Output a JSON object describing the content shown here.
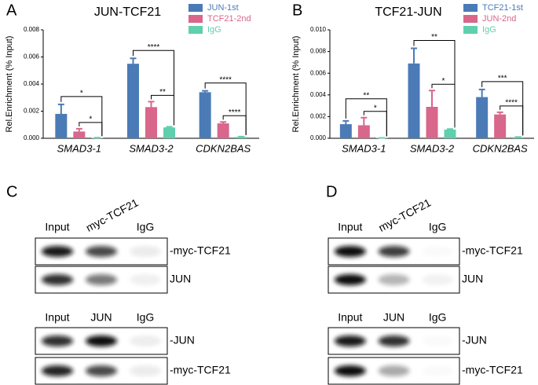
{
  "chart_data": [
    {
      "type": "bar",
      "panel": "A",
      "title": "JUN-TCF21",
      "y_label": "Rel.Enrichment (% Input)",
      "categories": [
        "SMAD3-1",
        "SMAD3-2",
        "CDKN2BAS"
      ],
      "series": [
        {
          "name": "JUN-1st",
          "color": "#4b7bb6",
          "values": [
            0.0018,
            0.0055,
            0.0034
          ],
          "errors": [
            0.0007,
            0.0004,
            0.0001
          ]
        },
        {
          "name": "TCF21-2nd",
          "color": "#d9668b",
          "values": [
            0.0005,
            0.0023,
            0.0011
          ],
          "errors": [
            0.0002,
            0.0004,
            0.0001
          ]
        },
        {
          "name": "IgG",
          "color": "#5fcfae",
          "values": [
            3e-05,
            0.0008,
            0.0001
          ],
          "errors": [
            1e-05,
            5e-05,
            2e-05
          ]
        }
      ],
      "significance": [
        [
          "*",
          "*"
        ],
        [
          "****",
          "**"
        ],
        [
          "****",
          "****"
        ]
      ],
      "ylim": [
        0,
        0.008
      ],
      "yticks": [
        {
          "value": 0,
          "label": "0.000"
        },
        {
          "value": 0.002,
          "label": "0.002"
        },
        {
          "value": 0.004,
          "label": "0.004"
        },
        {
          "value": 0.006,
          "label": "0.006"
        },
        {
          "value": 0.008,
          "label": "0.008"
        }
      ]
    },
    {
      "type": "bar",
      "panel": "B",
      "title": "TCF21-JUN",
      "y_label": "Rel.Enrichment (% Input)",
      "categories": [
        "SMAD3-1",
        "SMAD3-2",
        "CDKN2BAS"
      ],
      "series": [
        {
          "name": "TCF21-1st",
          "color": "#4b7bb6",
          "values": [
            0.0013,
            0.0069,
            0.0038
          ],
          "errors": [
            0.0003,
            0.0014,
            0.0007
          ]
        },
        {
          "name": "JUN-2nd",
          "color": "#d9668b",
          "values": [
            0.0012,
            0.0029,
            0.0022
          ],
          "errors": [
            0.0007,
            0.0015,
            0.0002
          ]
        },
        {
          "name": "IgG",
          "color": "#5fcfae",
          "values": [
            3e-05,
            0.0008,
            0.0001
          ],
          "errors": [
            1e-05,
            5e-05,
            2e-05
          ]
        }
      ],
      "significance": [
        [
          "**",
          "*"
        ],
        [
          "**",
          "*"
        ],
        [
          "***",
          "****"
        ]
      ],
      "ylim": [
        0,
        0.01
      ],
      "yticks": [
        {
          "value": 0,
          "label": "0.000"
        },
        {
          "value": 0.002,
          "label": "0.002"
        },
        {
          "value": 0.004,
          "label": "0.004"
        },
        {
          "value": 0.006,
          "label": "0.006"
        },
        {
          "value": 0.008,
          "label": "0.008"
        },
        {
          "value": 0.01,
          "label": "0.010"
        }
      ]
    }
  ],
  "blots": [
    {
      "panel": "C",
      "groups": [
        {
          "columns": [
            "Input",
            "myc-TCF21",
            "IgG"
          ],
          "rows": [
            "-myc-TCF21",
            "JUN"
          ]
        },
        {
          "columns": [
            "Input",
            "JUN",
            "IgG"
          ],
          "rows": [
            "-JUN",
            "-myc-TCF21"
          ]
        }
      ]
    },
    {
      "panel": "D",
      "groups": [
        {
          "columns": [
            "Input",
            "myc-TCF21",
            "IgG"
          ],
          "rows": [
            "-myc-TCF21",
            "JUN"
          ]
        },
        {
          "columns": [
            "Input",
            "JUN",
            "IgG"
          ],
          "rows": [
            "-JUN",
            "-myc-TCF21"
          ]
        }
      ]
    }
  ]
}
